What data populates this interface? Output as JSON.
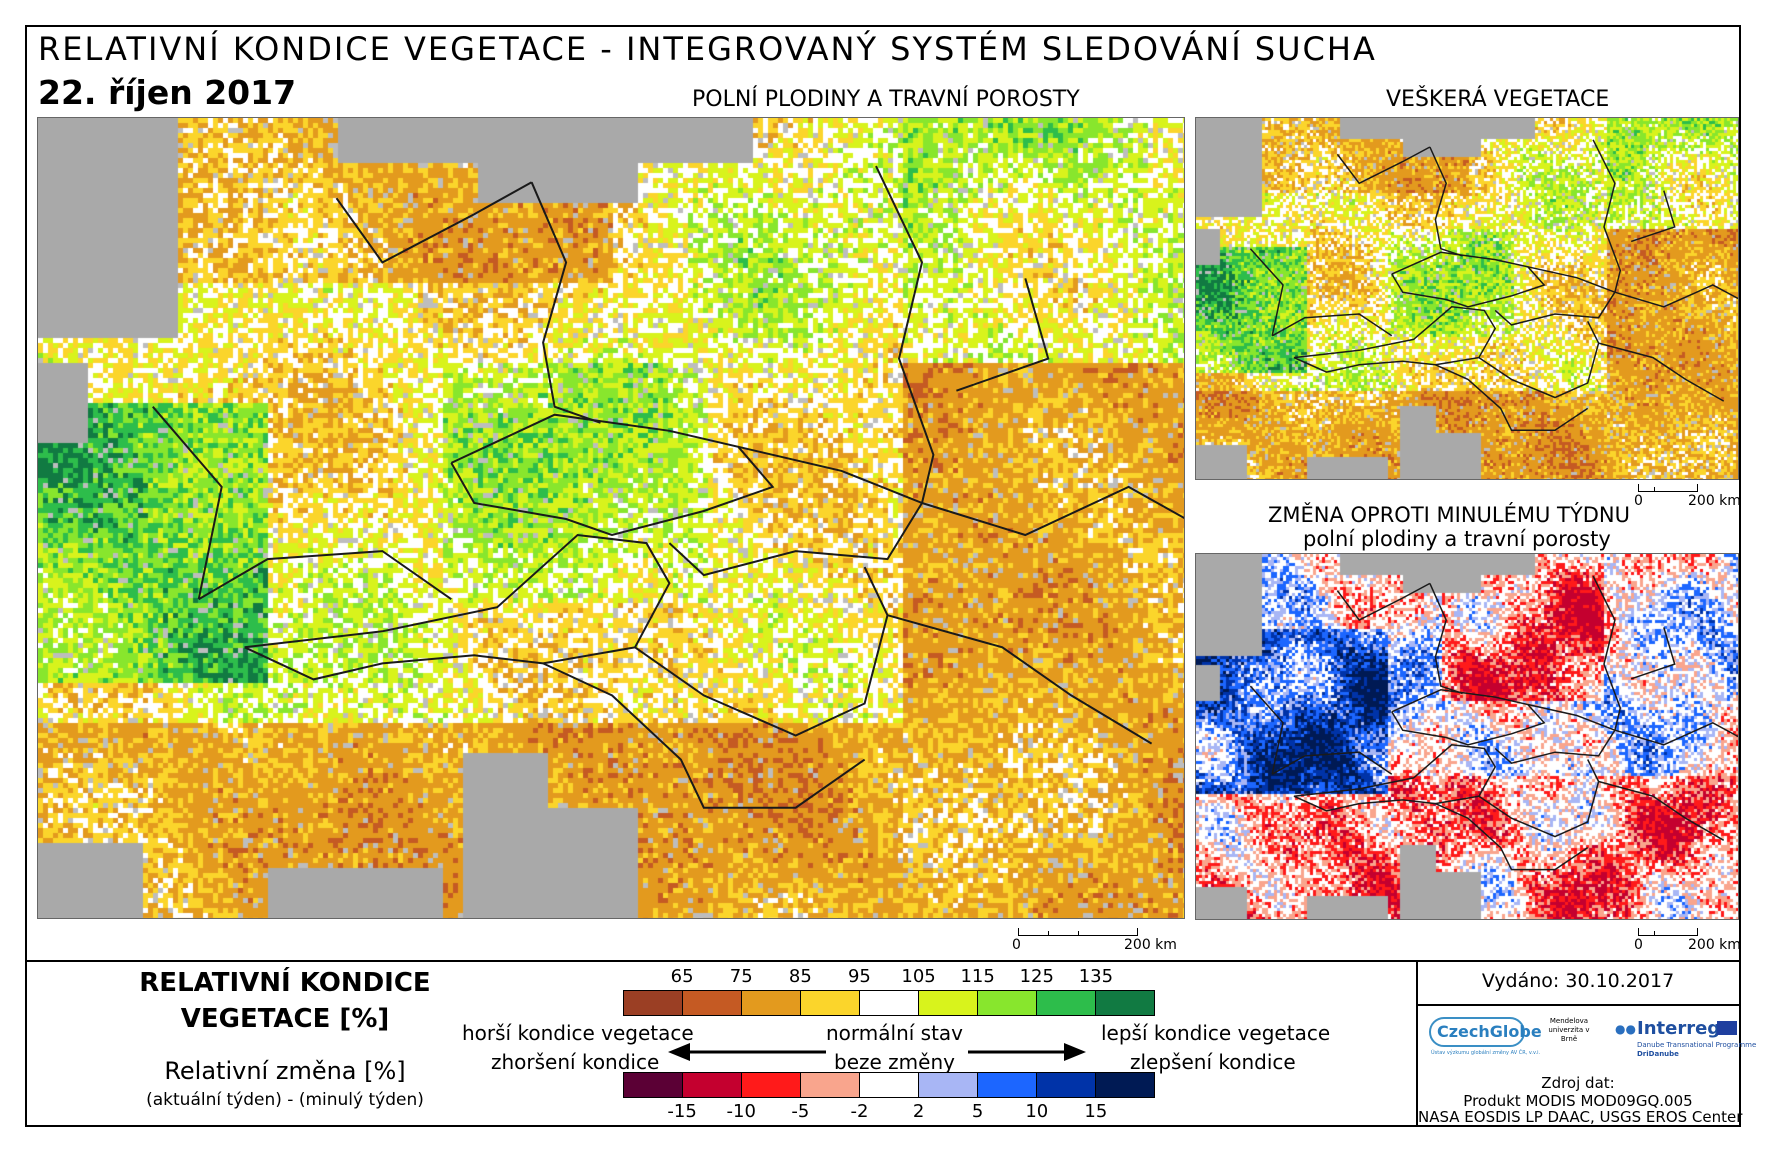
{
  "header": {
    "title": "RELATIVNÍ KONDICE VEGETACE - INTEGROVANÝ SYSTÉM SLEDOVÁNÍ SUCHA",
    "date": "22. říjen 2017"
  },
  "maps": {
    "main": {
      "title": "POLNÍ PLODINY A TRAVNÍ POROSTY",
      "scale_zero": "0",
      "scale_label": "200 km"
    },
    "all_vegetation": {
      "title": "VEŠKERÁ VEGETACE",
      "scale_zero": "0",
      "scale_label": "200 km"
    },
    "weekly_change": {
      "title_line1": "ZMĚNA OPROTI MINULÉMU TÝDNU",
      "title_line2": "polní plodiny a travní porosty",
      "scale_zero": "0",
      "scale_label": "200 km"
    }
  },
  "legend": {
    "title_line1": "RELATIVNÍ KONDICE",
    "title_line2": "VEGETACE [%]",
    "change_title": "Relativní změna [%]",
    "change_note": "(aktuální týden) - (minulý týden)",
    "condition_ticks": [
      "65",
      "75",
      "85",
      "95",
      "105",
      "115",
      "125",
      "135"
    ],
    "condition_colors": [
      "#9b3f24",
      "#c55a23",
      "#e39a1e",
      "#fbd52b",
      "#ffffff",
      "#d8f31c",
      "#88e62d",
      "#2dbd4b",
      "#117a42"
    ],
    "change_ticks": [
      "-15",
      "-10",
      "-5",
      "-2",
      "2",
      "5",
      "10",
      "15"
    ],
    "change_colors": [
      "#5b0035",
      "#c4002f",
      "#ff1a1a",
      "#f9a58d",
      "#ffffff",
      "#a8b6f5",
      "#1c66ff",
      "#0033a8",
      "#001a54"
    ],
    "worse_condition": "horší kondice vegetace",
    "normal_state": "normální stav",
    "better_condition": "lepší kondice vegetace",
    "worsening": "zhoršení kondice",
    "no_change": "beze změny",
    "improvement": "zlepšení kondice"
  },
  "footer": {
    "issued": "Vydáno: 30.10.2017",
    "source_title": "Zdroj dat:",
    "source_line1": "Produkt MODIS MOD09GQ.005",
    "source_line2": "NASA EOSDIS LP DAAC, USGS EROS Center",
    "logo_czechglobe": "CzechGlobe",
    "logo_czechglobe_tag": "Ústav výzkumu globální změny AV ČR, v.v.i.",
    "logo_mendelu": "Mendelova univerzita v Brně",
    "logo_interreg": "Interreg",
    "logo_interreg_sub1": "Danube Transnational Programme",
    "logo_interreg_sub2": "DriDanube"
  },
  "colors": {
    "sea_gray": "#a9a9a9",
    "border": "#1a1a1a"
  }
}
